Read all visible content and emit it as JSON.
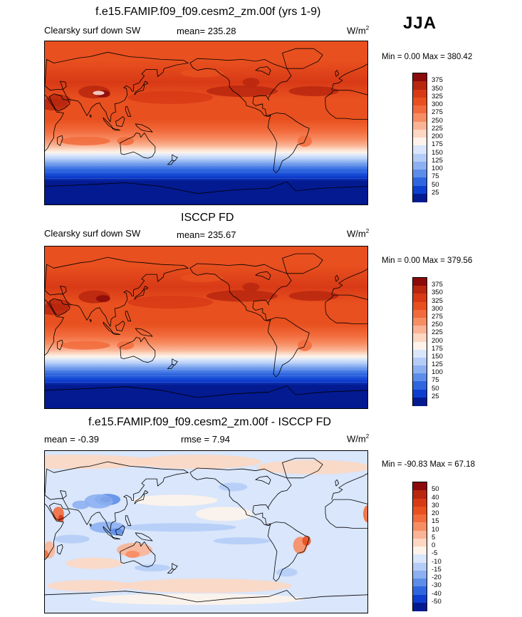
{
  "season": "JJA",
  "panels": [
    {
      "title": "f.e15.FAMIP.f09_f09.cesm2_zm.00f (yrs 1-9)",
      "left_label": "Clearsky surf down SW",
      "mean_text": "mean= 235.28",
      "units": "W/m",
      "units_sup": "2",
      "minmax": "Min =   0.00 Max = 380.42"
    },
    {
      "title": "ISCCP FD",
      "left_label": "Clearsky surf down SW",
      "mean_text": "mean= 235.67",
      "units": "W/m",
      "units_sup": "2",
      "minmax": "Min =   0.00 Max = 379.56"
    },
    {
      "title": "f.e15.FAMIP.f09_f09.cesm2_zm.00f - ISCCP FD",
      "left_label": "mean =  -0.39",
      "mean_text": "rmse =   7.94",
      "units": "W/m",
      "units_sup": "2",
      "minmax": "Min = -90.83 Max =  67.18"
    }
  ],
  "chart_data": [
    {
      "type": "heatmap",
      "map_projection": "global cylindrical equidistant, centered on Pacific",
      "title": "f.e15.FAMIP.f09_f09.cesm2_zm.00f (yrs 1-9)",
      "variable": "Clearsky surf down SW",
      "mean": 235.28,
      "min": 0.0,
      "max": 380.42,
      "units": "W/m2",
      "colorbar_levels": [
        375,
        350,
        325,
        300,
        275,
        250,
        225,
        200,
        175,
        150,
        125,
        100,
        75,
        50,
        25
      ],
      "colorbar_colors": [
        "#8c0a0a",
        "#b8270e",
        "#d83a16",
        "#e8501f",
        "#f26b3c",
        "#f78d63",
        "#fab495",
        "#fcd7c2",
        "#fdf3ea",
        "#d9e6fb",
        "#b4cdf7",
        "#8cb0f1",
        "#5d8de9",
        "#2f66e0",
        "#0d3ed0",
        "#031a91"
      ],
      "zonal_profile_lat_north_to_south": [
        {
          "lat": 90,
          "value": 330
        },
        {
          "lat": 60,
          "value": 320
        },
        {
          "lat": 30,
          "value": 335
        },
        {
          "lat": 0,
          "value": 300
        },
        {
          "lat": -20,
          "value": 245
        },
        {
          "lat": -35,
          "value": 170
        },
        {
          "lat": -50,
          "value": 90
        },
        {
          "lat": -65,
          "value": 20
        },
        {
          "lat": -90,
          "value": 0
        }
      ]
    },
    {
      "type": "heatmap",
      "map_projection": "global cylindrical equidistant, centered on Pacific",
      "title": "ISCCP FD",
      "variable": "Clearsky surf down SW",
      "mean": 235.67,
      "min": 0.0,
      "max": 379.56,
      "units": "W/m2",
      "colorbar_levels": [
        375,
        350,
        325,
        300,
        275,
        250,
        225,
        200,
        175,
        150,
        125,
        100,
        75,
        50,
        25
      ],
      "colorbar_colors": [
        "#8c0a0a",
        "#b8270e",
        "#d83a16",
        "#e8501f",
        "#f26b3c",
        "#f78d63",
        "#fab495",
        "#fcd7c2",
        "#fdf3ea",
        "#d9e6fb",
        "#b4cdf7",
        "#8cb0f1",
        "#5d8de9",
        "#2f66e0",
        "#0d3ed0",
        "#031a91"
      ],
      "zonal_profile_lat_north_to_south": [
        {
          "lat": 90,
          "value": 330
        },
        {
          "lat": 60,
          "value": 320
        },
        {
          "lat": 30,
          "value": 335
        },
        {
          "lat": 0,
          "value": 300
        },
        {
          "lat": -20,
          "value": 245
        },
        {
          "lat": -35,
          "value": 170
        },
        {
          "lat": -50,
          "value": 90
        },
        {
          "lat": -65,
          "value": 20
        },
        {
          "lat": -90,
          "value": 0
        }
      ]
    },
    {
      "type": "heatmap",
      "map_projection": "global cylindrical equidistant, centered on Pacific",
      "title": "f.e15.FAMIP.f09_f09.cesm2_zm.00f - ISCCP FD",
      "mean": -0.39,
      "rmse": 7.94,
      "min": -90.83,
      "max": 67.18,
      "units": "W/m2",
      "colorbar_levels": [
        50,
        40,
        30,
        20,
        15,
        10,
        5,
        0,
        -5,
        -10,
        -15,
        -20,
        -30,
        -40,
        -50
      ],
      "colorbar_colors": [
        "#8c0a0a",
        "#b8270e",
        "#d83a16",
        "#e8501f",
        "#f26b3c",
        "#f78d63",
        "#fab495",
        "#fcd7c2",
        "#fdf3ea",
        "#d9e6fb",
        "#b4cdf7",
        "#8cb0f1",
        "#5d8de9",
        "#2f66e0",
        "#0d3ed0",
        "#031a91"
      ]
    }
  ]
}
